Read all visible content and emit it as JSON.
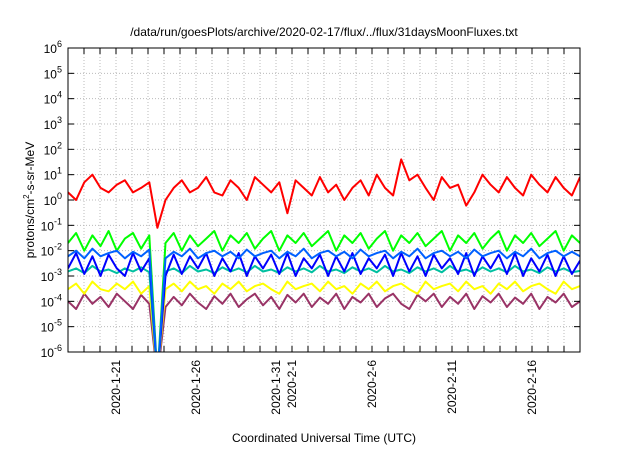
{
  "chart_data": {
    "type": "line",
    "title": "/data/run/goesPlots/archive/2020-02-17/flux/../flux/31daysMoonFluxes.txt",
    "xlabel": "Coordinated Universal Time (UTC)",
    "ylabel": "protons/cm2-s-sr-MeV",
    "ylabel_parts": {
      "pre": "protons/cm",
      "sup": "2",
      "post": "-s-sr-MeV"
    },
    "yscale": "log",
    "ylim": [
      1e-06,
      1000000.0
    ],
    "xlim_days": [
      "2020-01-18",
      "2020-02-19"
    ],
    "grid": true,
    "y_ticks": [
      {
        "base": "10",
        "exp": "6"
      },
      {
        "base": "10",
        "exp": "5"
      },
      {
        "base": "10",
        "exp": "4"
      },
      {
        "base": "10",
        "exp": "3"
      },
      {
        "base": "10",
        "exp": "2"
      },
      {
        "base": "10",
        "exp": "1"
      },
      {
        "base": "10",
        "exp": "0"
      },
      {
        "base": "10",
        "exp": "-1"
      },
      {
        "base": "10",
        "exp": "-2"
      },
      {
        "base": "10",
        "exp": "-3"
      },
      {
        "base": "10",
        "exp": "-4"
      },
      {
        "base": "10",
        "exp": "-5"
      },
      {
        "base": "10",
        "exp": "-6"
      }
    ],
    "x_tick_labels": [
      {
        "label": "2020-1-21",
        "day": 3
      },
      {
        "label": "2020-1-26",
        "day": 8
      },
      {
        "label": "2020-1-31",
        "day": 13
      },
      {
        "label": "2020-2-1",
        "day": 14
      },
      {
        "label": "2020-2-6",
        "day": 19
      },
      {
        "label": "2020-2-11",
        "day": 24
      },
      {
        "label": "2020-2-16",
        "day": 29
      }
    ],
    "x_start_day": 0,
    "x_end_day": 32,
    "series": [
      {
        "name": "purple",
        "color": "#993366",
        "values": [
          0.0001,
          5e-05,
          0.0002,
          8e-05,
          0.00015,
          6e-05,
          0.0002,
          0.0001,
          5e-05,
          0.00018,
          8e-05,
          1e-07,
          6e-05,
          0.00015,
          7e-05,
          0.0002,
          9e-05,
          5e-05,
          0.00016,
          8e-05,
          0.0002,
          6e-05,
          0.00012,
          0.0002,
          7e-05,
          0.00015,
          5e-05,
          0.00018,
          9e-05,
          0.0002,
          6e-05,
          0.00014,
          8e-05,
          0.0002,
          5e-05,
          0.00015,
          9e-05,
          0.0002,
          6e-05,
          0.00013,
          0.0002,
          8e-05,
          5e-05,
          0.00018,
          0.0001,
          0.0002,
          6e-05,
          0.00015,
          8e-05,
          0.0002,
          5e-05,
          0.00016,
          9e-05,
          0.0002,
          6e-05,
          0.00014,
          8e-05,
          0.0002,
          5e-05,
          0.00015,
          9e-05,
          0.0002,
          6e-05,
          0.0001
        ]
      },
      {
        "name": "yellow",
        "color": "#ffff00",
        "values": [
          0.0003,
          0.0005,
          0.0002,
          0.0006,
          0.0003,
          0.00025,
          0.0005,
          0.0003,
          0.0006,
          0.0002,
          0.0004,
          1e-07,
          0.0003,
          0.0005,
          0.00025,
          0.0006,
          0.0003,
          0.0004,
          0.0002,
          0.0005,
          0.0003,
          0.0006,
          0.00025,
          0.0004,
          0.0005,
          0.0003,
          0.0002,
          0.0006,
          0.0003,
          0.0004,
          0.0005,
          0.00025,
          0.0006,
          0.0003,
          0.0004,
          0.0002,
          0.0005,
          0.0003,
          0.0006,
          0.00025,
          0.0004,
          0.0005,
          0.0003,
          0.0002,
          0.0006,
          0.0003,
          0.0004,
          0.0005,
          0.00025,
          0.0006,
          0.0003,
          0.0004,
          0.0002,
          0.0005,
          0.0003,
          0.0006,
          0.00025,
          0.0004,
          0.0005,
          0.0003,
          0.0002,
          0.0006,
          0.0003,
          0.0004
        ]
      },
      {
        "name": "green",
        "color": "#00ff00",
        "values": [
          0.02,
          0.05,
          0.01,
          0.04,
          0.015,
          0.06,
          0.01,
          0.03,
          0.05,
          0.012,
          0.04,
          1e-07,
          0.02,
          0.05,
          0.01,
          0.04,
          0.015,
          0.03,
          0.06,
          0.01,
          0.04,
          0.02,
          0.05,
          0.012,
          0.03,
          0.06,
          0.01,
          0.04,
          0.02,
          0.05,
          0.015,
          0.03,
          0.06,
          0.01,
          0.04,
          0.02,
          0.05,
          0.012,
          0.03,
          0.06,
          0.01,
          0.04,
          0.02,
          0.05,
          0.015,
          0.03,
          0.06,
          0.01,
          0.04,
          0.02,
          0.05,
          0.012,
          0.03,
          0.06,
          0.01,
          0.04,
          0.02,
          0.05,
          0.015,
          0.03,
          0.06,
          0.01,
          0.04,
          0.02
        ]
      },
      {
        "name": "teal",
        "color": "#00c0a0",
        "values": [
          0.0015,
          0.002,
          0.0013,
          0.0025,
          0.0015,
          0.0018,
          0.0013,
          0.002,
          0.0015,
          0.0022,
          0.0014,
          1e-07,
          0.0015,
          0.002,
          0.0013,
          0.0025,
          0.0015,
          0.0018,
          0.0013,
          0.0022,
          0.0015,
          0.002,
          0.0014,
          0.0025,
          0.0015,
          0.0018,
          0.0013,
          0.0022,
          0.0015,
          0.002,
          0.0014,
          0.0025,
          0.0015,
          0.0018,
          0.0013,
          0.0022,
          0.0015,
          0.002,
          0.0014,
          0.0025,
          0.0015,
          0.0018,
          0.0013,
          0.0022,
          0.0015,
          0.002,
          0.0014,
          0.0025,
          0.0015,
          0.0018,
          0.0013,
          0.0022,
          0.0015,
          0.002,
          0.0014,
          0.0025,
          0.0015,
          0.0018,
          0.0013,
          0.0022,
          0.0015,
          0.002,
          0.0014,
          0.0016
        ]
      },
      {
        "name": "blue",
        "color": "#0000ff",
        "values": [
          0.002,
          0.008,
          0.0012,
          0.006,
          0.001,
          0.007,
          0.002,
          0.001,
          0.008,
          0.0015,
          0.005,
          1e-07,
          0.001,
          0.007,
          0.0012,
          0.006,
          0.002,
          0.008,
          0.001,
          0.005,
          0.0015,
          0.008,
          0.001,
          0.006,
          0.002,
          0.007,
          0.0012,
          0.008,
          0.001,
          0.005,
          0.002,
          0.007,
          0.001,
          0.006,
          0.0015,
          0.008,
          0.0012,
          0.005,
          0.002,
          0.007,
          0.001,
          0.008,
          0.0015,
          0.006,
          0.001,
          0.007,
          0.002,
          0.005,
          0.0012,
          0.008,
          0.001,
          0.006,
          0.002,
          0.007,
          0.0012,
          0.008,
          0.001,
          0.005,
          0.0015,
          0.007,
          0.001,
          0.006,
          0.0012,
          0.004
        ]
      },
      {
        "name": "lightblue",
        "color": "#0060ff",
        "values": [
          0.006,
          0.01,
          0.005,
          0.012,
          0.006,
          0.008,
          0.01,
          0.005,
          0.009,
          0.006,
          0.011,
          1e-07,
          0.005,
          0.009,
          0.006,
          0.012,
          0.005,
          0.008,
          0.01,
          0.006,
          0.009,
          0.005,
          0.011,
          0.006,
          0.008,
          0.01,
          0.005,
          0.009,
          0.006,
          0.012,
          0.005,
          0.008,
          0.01,
          0.006,
          0.009,
          0.005,
          0.011,
          0.006,
          0.008,
          0.01,
          0.005,
          0.009,
          0.006,
          0.012,
          0.005,
          0.008,
          0.01,
          0.006,
          0.009,
          0.005,
          0.011,
          0.006,
          0.008,
          0.01,
          0.005,
          0.009,
          0.006,
          0.012,
          0.005,
          0.008,
          0.01,
          0.006,
          0.009,
          0.006
        ]
      },
      {
        "name": "red",
        "color": "#ff0000",
        "values": [
          2,
          1,
          5,
          10,
          3,
          2,
          4,
          6,
          2,
          3,
          5,
          0.08,
          1,
          3,
          6,
          2,
          3,
          8,
          2,
          1.5,
          6,
          3,
          1,
          8,
          4,
          2,
          5,
          0.3,
          6,
          3,
          1.5,
          8,
          2,
          4,
          1,
          3,
          6,
          1.5,
          10,
          3,
          1.5,
          40,
          6,
          10,
          3,
          1,
          8,
          3,
          4,
          0.6,
          2,
          10,
          4,
          2,
          8,
          3,
          1.5,
          10,
          4,
          2,
          8,
          3,
          1.5,
          8
        ]
      }
    ]
  }
}
